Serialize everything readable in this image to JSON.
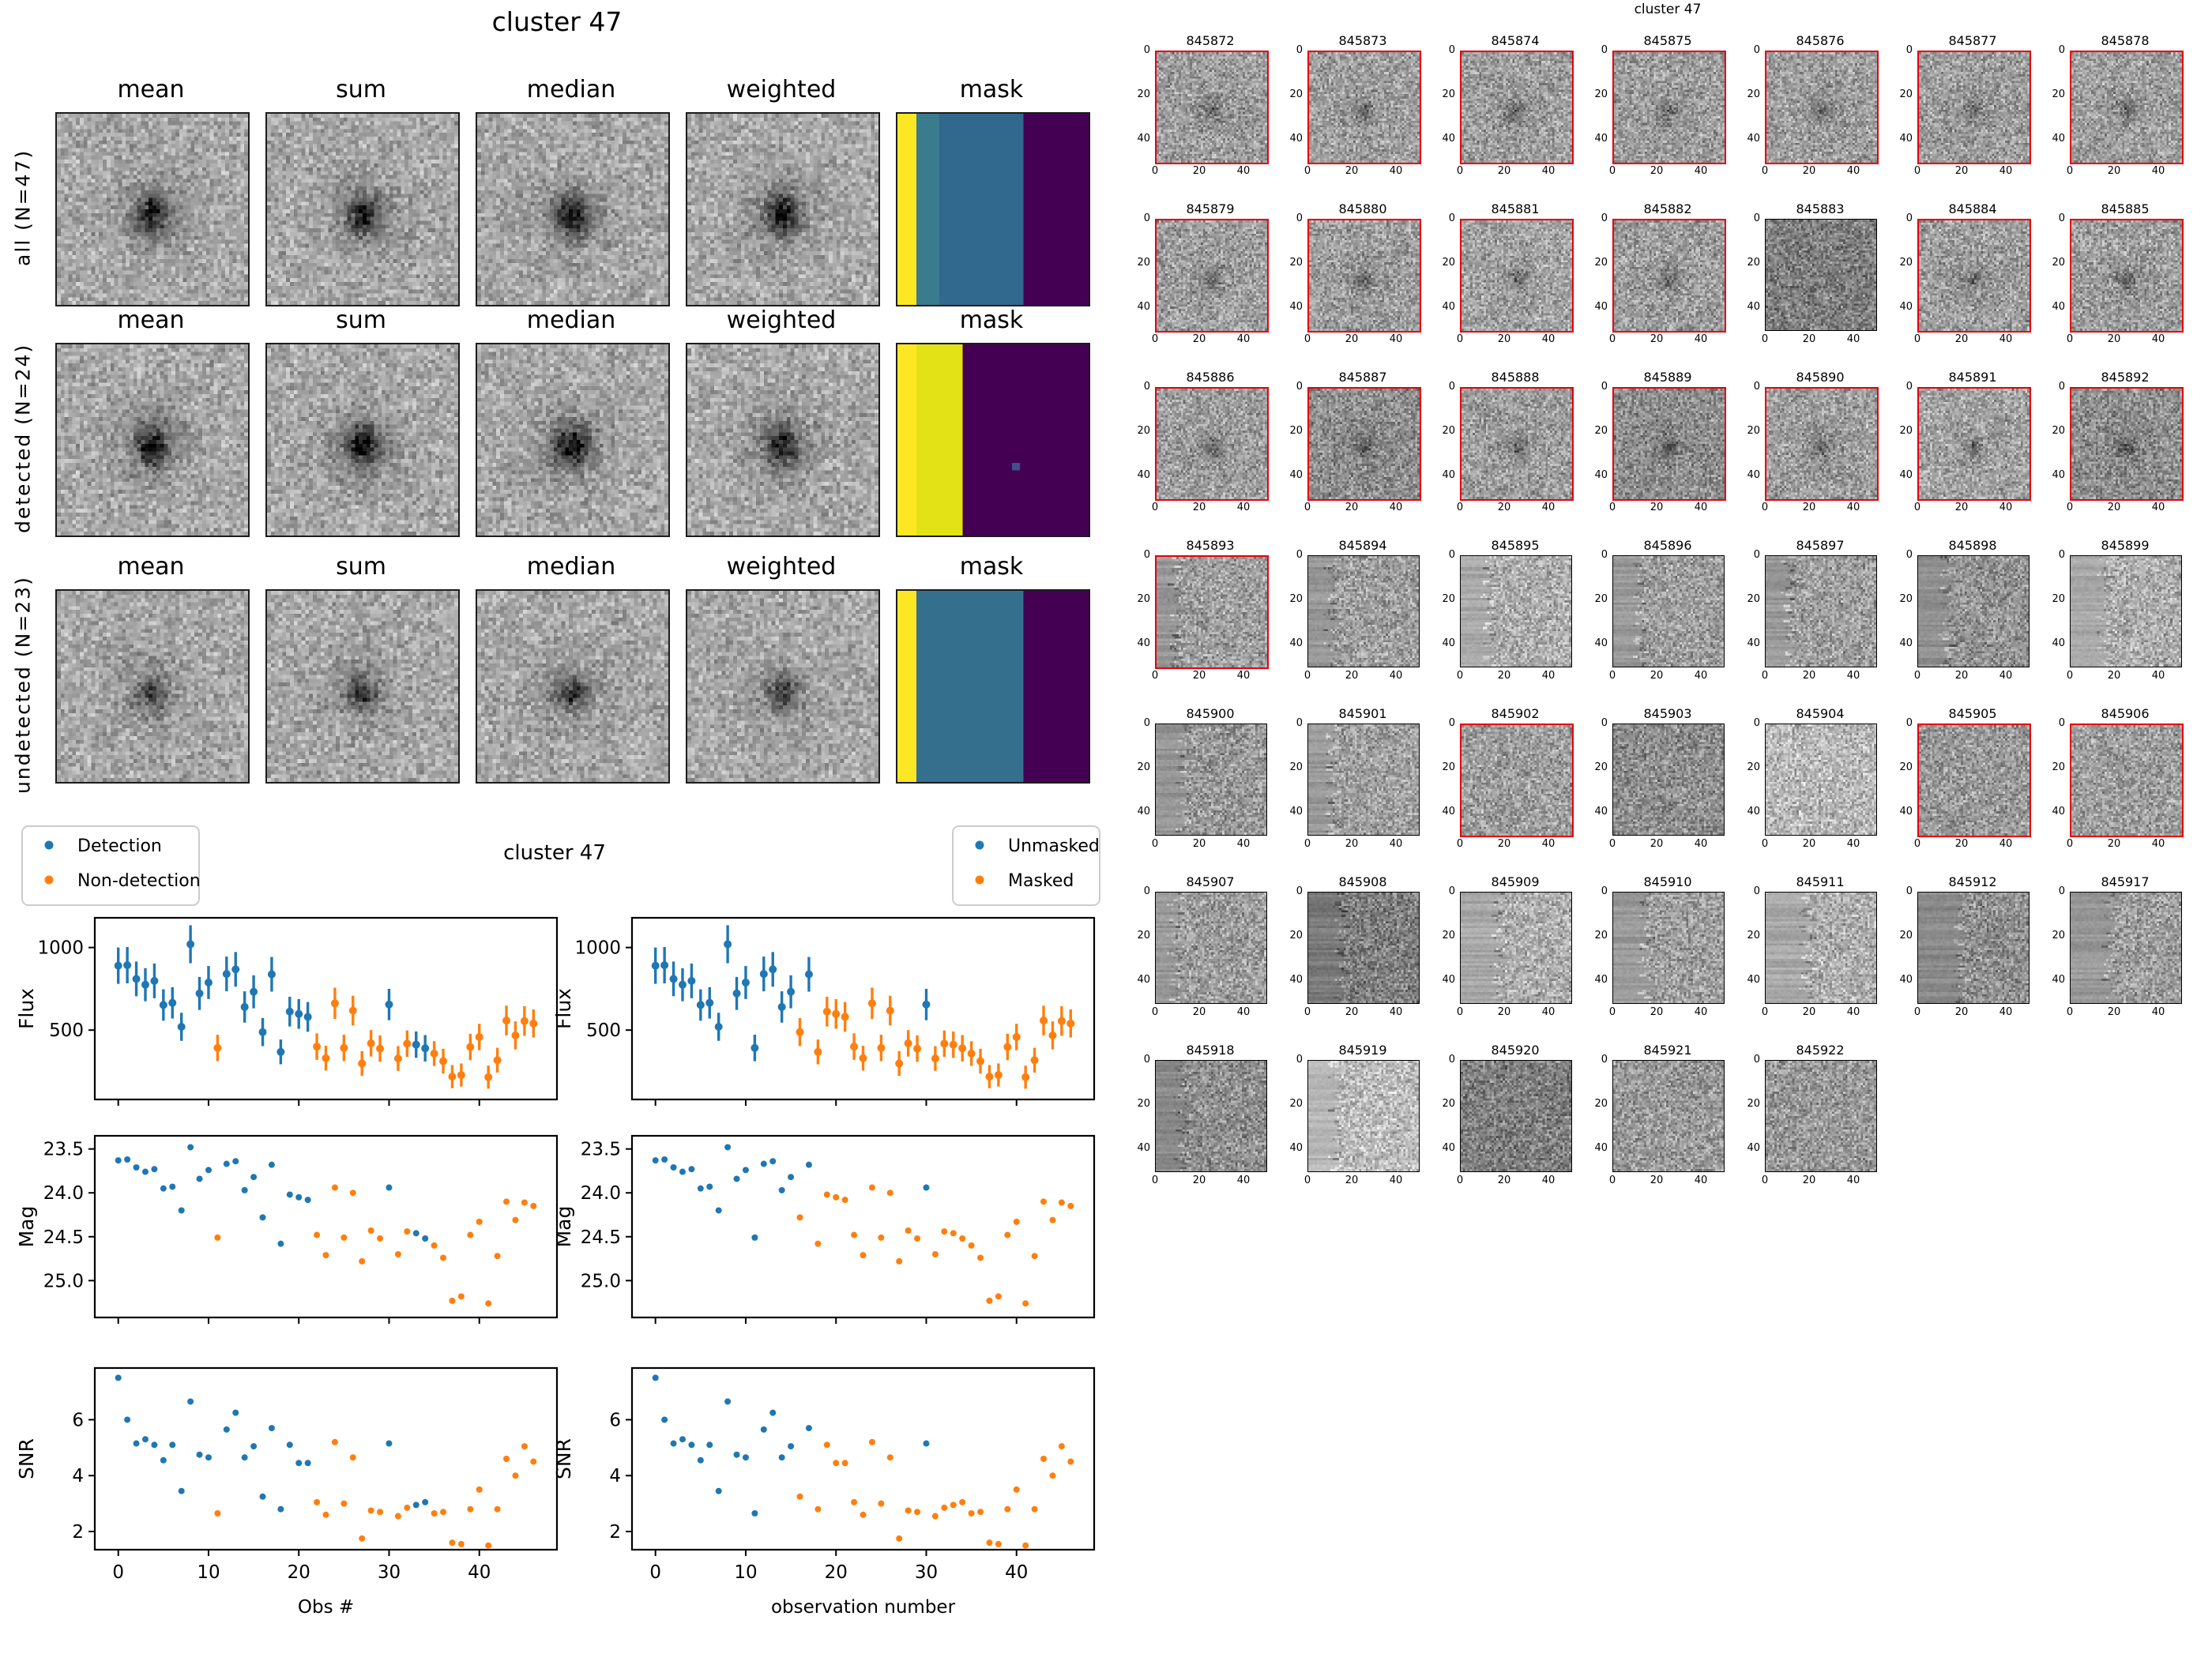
{
  "figure_stacks": {
    "title": "cluster 47",
    "column_headers": [
      "mean",
      "sum",
      "median",
      "weighted",
      "mask"
    ],
    "rows": [
      {
        "label": "all (N=47)",
        "blob_strength": 118,
        "mask_bands": [
          {
            "color": "#fde725",
            "width": 0.1
          },
          {
            "color": "#3a7b8e",
            "width": 0.11
          },
          {
            "color": "#31688e",
            "width": 0.44
          },
          {
            "color": "#440154",
            "width": 0.35
          }
        ]
      },
      {
        "label": "detected (N=24)",
        "blob_strength": 128,
        "mask_bands": [
          {
            "color": "#fde725",
            "width": 0.1
          },
          {
            "color": "#e2e217",
            "width": 0.23
          },
          {
            "color": "#440154",
            "width": 0.67
          }
        ],
        "mask_dot": {
          "x": 30,
          "y": 31,
          "color": "#3b528b"
        }
      },
      {
        "label": "undetected (N=23)",
        "blob_strength": 88,
        "mask_bands": [
          {
            "color": "#fde725",
            "width": 0.09
          },
          {
            "color": "#34708e",
            "width": 0.56
          },
          {
            "color": "#440154",
            "width": 0.35
          }
        ]
      }
    ]
  },
  "scatter_figure": {
    "title": "cluster 47",
    "legend_left": [
      {
        "label": "Detection",
        "color": "#1f77b4"
      },
      {
        "label": "Non-detection",
        "color": "#ff7f0e"
      }
    ],
    "legend_right": [
      {
        "label": "Unmasked",
        "color": "#1f77b4"
      },
      {
        "label": "Masked",
        "color": "#ff7f0e"
      }
    ],
    "xlabel_left": "Obs #",
    "xlabel_right": "observation number",
    "xlim": [
      -2.6,
      48.6
    ],
    "xticks": [
      0,
      10,
      20,
      30,
      40
    ],
    "rows": [
      {
        "ylabel": "Flux",
        "ylim": [
          1180,
          80
        ],
        "errorbars": true,
        "field": 0,
        "yticks": [
          {
            "v": 1000,
            "label": "1000"
          },
          {
            "v": 500,
            "label": "500"
          }
        ]
      },
      {
        "ylabel": "Mag",
        "ylim": [
          23.35,
          25.42
        ],
        "errorbars": false,
        "field": 2,
        "yticks": [
          {
            "v": 23.5,
            "label": "23.5"
          },
          {
            "v": 24.0,
            "label": "24.0"
          },
          {
            "v": 24.5,
            "label": "24.5"
          },
          {
            "v": 25.0,
            "label": "25.0"
          }
        ]
      },
      {
        "ylabel": "SNR",
        "ylim": [
          7.85,
          1.35
        ],
        "errorbars": false,
        "field": 3,
        "yticks": [
          {
            "v": 6,
            "label": "6"
          },
          {
            "v": 4,
            "label": "4"
          },
          {
            "v": 2,
            "label": "2"
          }
        ]
      }
    ]
  },
  "chart_data": {
    "type": "scatter",
    "title": "cluster 47",
    "x_label": "Obs #",
    "x": "observation index 0..46",
    "fields": [
      "flux",
      "flux_err",
      "mag",
      "snr",
      "detected",
      "unmasked"
    ],
    "legend_groups_left": [
      "Detection",
      "Non-detection"
    ],
    "legend_groups_right": [
      "Unmasked",
      "Masked"
    ],
    "ylabels": [
      "Flux",
      "Mag",
      "SNR"
    ],
    "observations": [
      [
        890,
        110,
        23.63,
        7.5,
        1,
        1
      ],
      [
        893,
        110,
        23.62,
        6.0,
        1,
        1
      ],
      [
        810,
        105,
        23.71,
        5.15,
        1,
        1
      ],
      [
        775,
        100,
        23.76,
        5.3,
        1,
        1
      ],
      [
        798,
        105,
        23.73,
        5.1,
        1,
        1
      ],
      [
        652,
        95,
        23.95,
        4.55,
        1,
        1
      ],
      [
        665,
        95,
        23.93,
        5.1,
        1,
        1
      ],
      [
        520,
        85,
        24.2,
        3.45,
        1,
        1
      ],
      [
        1020,
        115,
        23.48,
        6.65,
        1,
        1
      ],
      [
        722,
        100,
        23.84,
        4.75,
        1,
        1
      ],
      [
        788,
        100,
        23.74,
        4.65,
        1,
        1
      ],
      [
        392,
        80,
        24.51,
        2.65,
        0,
        1
      ],
      [
        840,
        105,
        23.67,
        5.65,
        1,
        1
      ],
      [
        868,
        105,
        23.64,
        6.25,
        1,
        1
      ],
      [
        640,
        95,
        23.97,
        4.65,
        1,
        1
      ],
      [
        732,
        100,
        23.82,
        5.05,
        1,
        1
      ],
      [
        488,
        85,
        24.28,
        3.25,
        1,
        0
      ],
      [
        838,
        105,
        23.68,
        5.7,
        1,
        1
      ],
      [
        368,
        75,
        24.58,
        2.8,
        1,
        0
      ],
      [
        612,
        90,
        24.02,
        5.1,
        1,
        0
      ],
      [
        598,
        90,
        24.05,
        4.45,
        1,
        0
      ],
      [
        580,
        90,
        24.08,
        4.45,
        1,
        0
      ],
      [
        400,
        80,
        24.48,
        3.05,
        0,
        0
      ],
      [
        330,
        75,
        24.71,
        2.6,
        0,
        0
      ],
      [
        662,
        95,
        23.94,
        5.2,
        0,
        0
      ],
      [
        392,
        80,
        24.51,
        3.0,
        0,
        0
      ],
      [
        618,
        90,
        24.0,
        4.65,
        0,
        0
      ],
      [
        298,
        75,
        24.78,
        1.75,
        0,
        0
      ],
      [
        420,
        80,
        24.43,
        2.75,
        0,
        0
      ],
      [
        388,
        80,
        24.52,
        2.7,
        0,
        0
      ],
      [
        655,
        95,
        23.94,
        5.15,
        1,
        1
      ],
      [
        328,
        75,
        24.7,
        2.55,
        0,
        0
      ],
      [
        418,
        80,
        24.44,
        2.85,
        0,
        0
      ],
      [
        412,
        80,
        24.46,
        2.95,
        1,
        0
      ],
      [
        390,
        80,
        24.52,
        3.05,
        1,
        0
      ],
      [
        358,
        75,
        24.6,
        2.65,
        0,
        0
      ],
      [
        312,
        75,
        24.74,
        2.7,
        0,
        0
      ],
      [
        218,
        70,
        25.23,
        1.6,
        0,
        0
      ],
      [
        228,
        70,
        25.18,
        1.55,
        0,
        0
      ],
      [
        398,
        80,
        24.48,
        2.8,
        0,
        0
      ],
      [
        458,
        80,
        24.33,
        3.5,
        0,
        0
      ],
      [
        215,
        70,
        25.26,
        1.5,
        0,
        0
      ],
      [
        318,
        75,
        24.72,
        2.8,
        0,
        0
      ],
      [
        558,
        90,
        24.1,
        4.6,
        0,
        0
      ],
      [
        468,
        85,
        24.31,
        4.0,
        0,
        0
      ],
      [
        555,
        90,
        24.11,
        5.05,
        0,
        0
      ],
      [
        540,
        85,
        24.15,
        4.5,
        0,
        0
      ]
    ]
  },
  "figure_thumbs": {
    "title": "cluster 47",
    "xticks": [
      0,
      20,
      40
    ],
    "yticks": [
      0,
      20,
      40
    ],
    "detected_border_color": "#e8000b",
    "undetected_border_color": "#000000",
    "thumbnails": [
      {
        "id": "845872",
        "detected": true,
        "band": 0,
        "tone": 0.62
      },
      {
        "id": "845873",
        "detected": true,
        "band": 0,
        "tone": 0.62
      },
      {
        "id": "845874",
        "detected": true,
        "band": 0,
        "tone": 0.62
      },
      {
        "id": "845875",
        "detected": true,
        "band": 0,
        "tone": 0.62
      },
      {
        "id": "845876",
        "detected": true,
        "band": 0,
        "tone": 0.62
      },
      {
        "id": "845877",
        "detected": true,
        "band": 0,
        "tone": 0.62
      },
      {
        "id": "845878",
        "detected": true,
        "band": 0,
        "tone": 0.62
      },
      {
        "id": "845879",
        "detected": true,
        "band": 0,
        "tone": 0.62
      },
      {
        "id": "845880",
        "detected": true,
        "band": 0,
        "tone": 0.62
      },
      {
        "id": "845881",
        "detected": true,
        "band": 0,
        "tone": 0.64
      },
      {
        "id": "845882",
        "detected": true,
        "band": 0,
        "tone": 0.62
      },
      {
        "id": "845883",
        "detected": false,
        "band": 0,
        "tone": 0.5
      },
      {
        "id": "845884",
        "detected": true,
        "band": 0,
        "tone": 0.62
      },
      {
        "id": "845885",
        "detected": true,
        "band": 0,
        "tone": 0.62
      },
      {
        "id": "845886",
        "detected": true,
        "band": 0,
        "tone": 0.62
      },
      {
        "id": "845887",
        "detected": true,
        "band": 0,
        "tone": 0.56
      },
      {
        "id": "845888",
        "detected": true,
        "band": 0,
        "tone": 0.62
      },
      {
        "id": "845889",
        "detected": true,
        "band": 0,
        "tone": 0.56
      },
      {
        "id": "845890",
        "detected": true,
        "band": 0,
        "tone": 0.62
      },
      {
        "id": "845891",
        "detected": true,
        "band": 0,
        "tone": 0.64
      },
      {
        "id": "845892",
        "detected": true,
        "band": 0,
        "tone": 0.56
      },
      {
        "id": "845893",
        "detected": true,
        "band": 10,
        "tone": 0.62
      },
      {
        "id": "845894",
        "detected": false,
        "band": 12,
        "tone": 0.62
      },
      {
        "id": "845895",
        "detected": false,
        "band": 14,
        "tone": 0.68
      },
      {
        "id": "845896",
        "detected": false,
        "band": 13,
        "tone": 0.62
      },
      {
        "id": "845897",
        "detected": false,
        "band": 12,
        "tone": 0.62
      },
      {
        "id": "845898",
        "detected": false,
        "band": 14,
        "tone": 0.58
      },
      {
        "id": "845899",
        "detected": false,
        "band": 16,
        "tone": 0.68
      },
      {
        "id": "845900",
        "detected": false,
        "band": 14,
        "tone": 0.6
      },
      {
        "id": "845901",
        "detected": false,
        "band": 12,
        "tone": 0.62
      },
      {
        "id": "845902",
        "detected": true,
        "band": 0,
        "tone": 0.62
      },
      {
        "id": "845903",
        "detected": false,
        "band": 0,
        "tone": 0.56
      },
      {
        "id": "845904",
        "detected": false,
        "band": 0,
        "tone": 0.72
      },
      {
        "id": "845905",
        "detected": true,
        "band": 0,
        "tone": 0.6
      },
      {
        "id": "845906",
        "detected": true,
        "band": 0,
        "tone": 0.62
      },
      {
        "id": "845907",
        "detected": false,
        "band": 10,
        "tone": 0.62
      },
      {
        "id": "845908",
        "detected": false,
        "band": 16,
        "tone": 0.5
      },
      {
        "id": "845909",
        "detected": false,
        "band": 18,
        "tone": 0.68
      },
      {
        "id": "845910",
        "detected": false,
        "band": 16,
        "tone": 0.62
      },
      {
        "id": "845911",
        "detected": false,
        "band": 20,
        "tone": 0.68
      },
      {
        "id": "845912",
        "detected": false,
        "band": 20,
        "tone": 0.56
      },
      {
        "id": "845917",
        "detected": false,
        "band": 19,
        "tone": 0.62
      },
      {
        "id": "845918",
        "detected": false,
        "band": 13,
        "tone": 0.56
      },
      {
        "id": "845919",
        "detected": false,
        "band": 14,
        "tone": 0.74
      },
      {
        "id": "845920",
        "detected": false,
        "band": 0,
        "tone": 0.5
      },
      {
        "id": "845921",
        "detected": false,
        "band": 0,
        "tone": 0.6
      },
      {
        "id": "845922",
        "detected": false,
        "band": 0,
        "tone": 0.6
      }
    ]
  }
}
